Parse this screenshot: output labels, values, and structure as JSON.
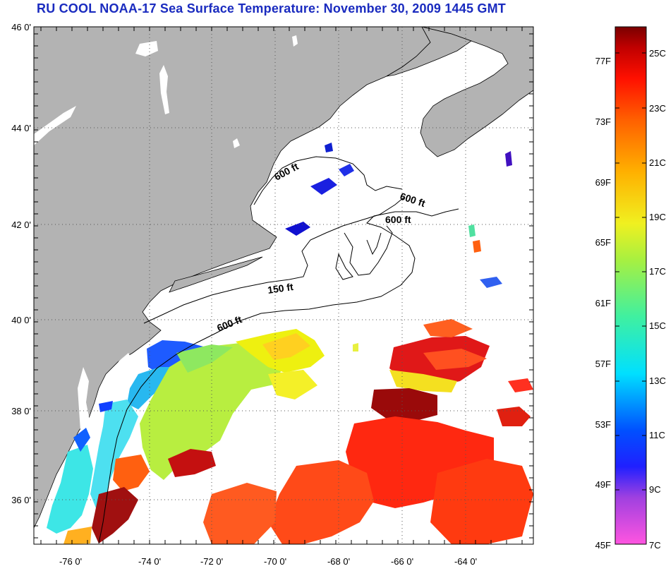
{
  "title": "RU COOL  NOAA-17  Sea Surface Temperature:  November 30, 2009 1445 GMT",
  "map": {
    "lat_labels": [
      "46 0'",
      "44 0'",
      "42 0'",
      "40 0'",
      "38 0'",
      "36 0'"
    ],
    "lon_labels": [
      "-76 0'",
      "-74 0'",
      "-72 0'",
      "-70 0'",
      "-68 0'",
      "-66 0'",
      "-64 0'"
    ],
    "contour_labels": [
      "600 ft",
      "600 ft",
      "600 ft",
      "150 ft",
      "600 ft"
    ],
    "colors": {
      "land": "#b3b3b3",
      "no_data": "#ffffff",
      "contour": "#000000"
    }
  },
  "legend": {
    "fahrenheit_labels": [
      "77F",
      "73F",
      "69F",
      "65F",
      "61F",
      "57F",
      "53F",
      "49F",
      "45F"
    ],
    "celsius_labels": [
      "25C",
      "23C",
      "21C",
      "19C",
      "17C",
      "15C",
      "13C",
      "11C",
      "9C",
      "7C"
    ],
    "range_celsius": [
      7,
      26.5
    ]
  }
}
